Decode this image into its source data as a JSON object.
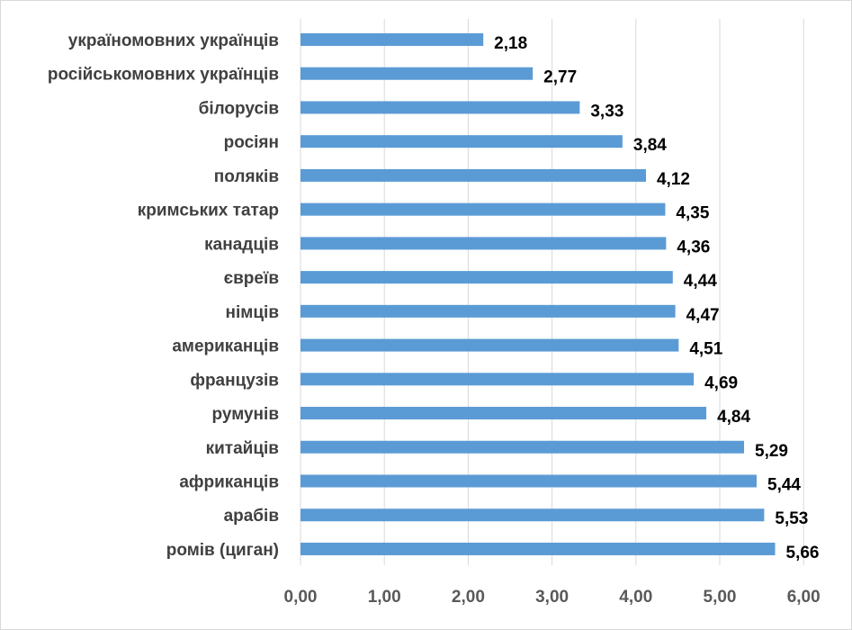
{
  "chart_data": {
    "type": "bar",
    "orientation": "horizontal",
    "categories": [
      "україномовних українців",
      "російськомовних українців",
      "білорусів",
      "росіян",
      "поляків",
      "кримських татар",
      "канадців",
      "євреїв",
      "німців",
      "американців",
      "французів",
      "румунів",
      "китайців",
      "африканців",
      "арабів",
      "ромів (циган)"
    ],
    "values": [
      2.18,
      2.77,
      3.33,
      3.84,
      4.12,
      4.35,
      4.36,
      4.44,
      4.47,
      4.51,
      4.69,
      4.84,
      5.29,
      5.44,
      5.53,
      5.66
    ],
    "value_labels": [
      "2,18",
      "2,77",
      "3,33",
      "3,84",
      "4,12",
      "4,35",
      "4,36",
      "4,44",
      "4,47",
      "4,51",
      "4,69",
      "4,84",
      "5,29",
      "5,44",
      "5,53",
      "5,66"
    ],
    "x_ticks": [
      0,
      1,
      2,
      3,
      4,
      5,
      6
    ],
    "x_tick_labels": [
      "0,00",
      "1,00",
      "2,00",
      "3,00",
      "4,00",
      "5,00",
      "6,00"
    ],
    "xlim": [
      0,
      6
    ],
    "grid": "vertical",
    "legend": "none",
    "bar_color": "#5b9bd5",
    "grid_color": "#d9d9d9"
  }
}
